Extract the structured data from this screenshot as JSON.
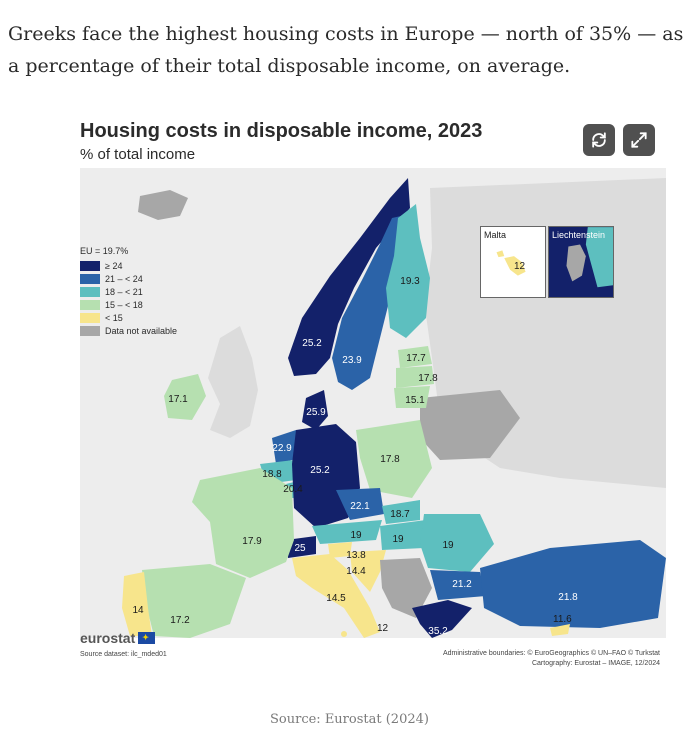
{
  "intro_text": "Greeks face the highest housing costs in Europe — north of 35% — as a percentage of their total disposable income, on average.",
  "figure": {
    "title": "Housing costs in disposable income, 2023",
    "subtitle": "% of total income",
    "controls": {
      "refresh_icon": "refresh-icon",
      "expand_icon": "expand-icon"
    },
    "legend": {
      "title": "EU = 19.7%",
      "items": [
        {
          "label": "≥ 24",
          "color": "#13216a"
        },
        {
          "label": "21 – < 24",
          "color": "#2b63a8"
        },
        {
          "label": "18 – < 21",
          "color": "#5dbfbf"
        },
        {
          "label": "15 – < 18",
          "color": "#b6e0b0"
        },
        {
          "label": "< 15",
          "color": "#f7e58c"
        },
        {
          "label": "Data not available",
          "color": "#a7a7a7"
        }
      ]
    },
    "insets": [
      {
        "title": "Malta",
        "value": "12"
      },
      {
        "title": "Liechtenstein",
        "value": ""
      }
    ],
    "country_values": {
      "norway": "25.2",
      "sweden": "23.9",
      "finland": "19.3",
      "estonia": "17.7",
      "latvia": "17.8",
      "lithuania": "15.1",
      "denmark": "25.9",
      "ireland": "17.1",
      "netherlands": "22.9",
      "belgium": "18.8",
      "luxembourg": "20.4",
      "germany": "25.2",
      "poland": "17.8",
      "czechia": "22.1",
      "slovakia": "18.7",
      "austria": "19",
      "hungary": "19",
      "switzerland": "25",
      "slovenia": "13.8",
      "croatia": "14.4",
      "romania": "19",
      "france": "17.9",
      "italy": "14.5",
      "portugal": "14",
      "spain": "17.2",
      "bulgaria": "21.2",
      "turkiye": "21.8",
      "greece": "35.2",
      "cyprus": "11.6",
      "malta_main": "12"
    },
    "brand": "eurostat",
    "source_dataset": "Source dataset: ilc_mded01",
    "credits_line1": "Administrative boundaries: © EuroGeographics © UN–FAO © Turkstat",
    "credits_line2": "Cartography: Eurostat – IMAGE, 12/2024"
  },
  "caption": "Source: Eurostat (2024)"
}
